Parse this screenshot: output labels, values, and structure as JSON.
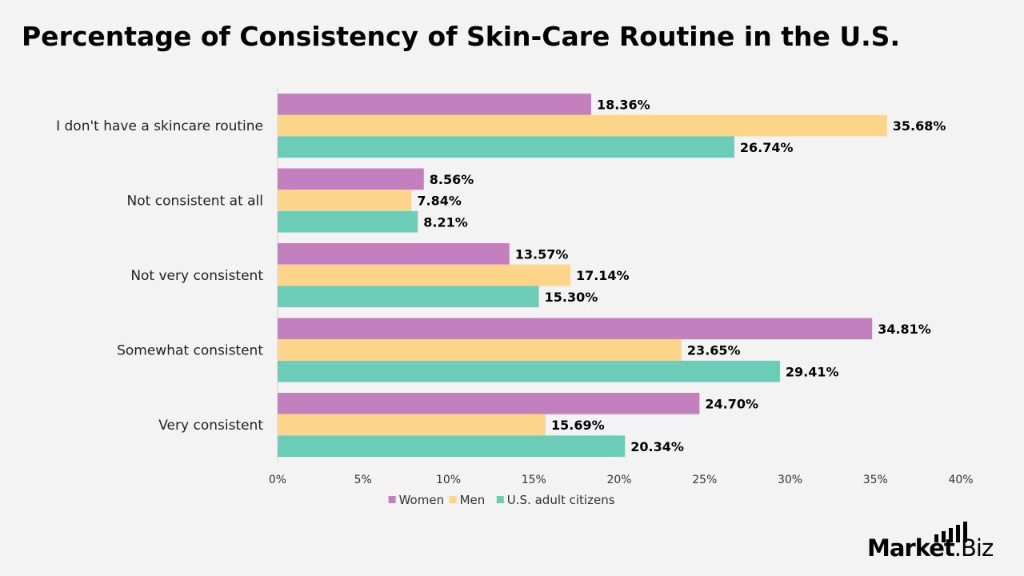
{
  "title": "Percentage of Consistency of Skin-Care Routine in the U.S.",
  "brand": {
    "strong": "Market",
    "light": ".Biz"
  },
  "chart_data": {
    "type": "bar",
    "orientation": "horizontal",
    "title": "Percentage of Consistency of Skin-Care Routine in the U.S.",
    "categories": [
      "I don't have a skincare routine",
      "Not consistent at all",
      "Not very consistent",
      "Somewhat consistent",
      "Very consistent"
    ],
    "series": [
      {
        "name": "Women",
        "color": "#c47fbf",
        "values": [
          18.36,
          8.56,
          13.57,
          34.81,
          24.7
        ],
        "labels": [
          "18.36%",
          "8.56%",
          "13.57%",
          "34.81%",
          "24.70%"
        ]
      },
      {
        "name": "Men",
        "color": "#fdd58a",
        "values": [
          35.68,
          7.84,
          17.14,
          23.65,
          15.69
        ],
        "labels": [
          "35.68%",
          "7.84%",
          "17.14%",
          "23.65%",
          "15.69%"
        ]
      },
      {
        "name": "U.S. adult citizens",
        "color": "#6bcdb8",
        "values": [
          26.74,
          8.21,
          15.3,
          29.41,
          20.34
        ],
        "labels": [
          "26.74%",
          "8.21%",
          "15.30%",
          "29.41%",
          "20.34%"
        ]
      }
    ],
    "xlim": [
      0,
      40
    ],
    "xticks": [
      0,
      5,
      10,
      15,
      20,
      25,
      30,
      35,
      40
    ],
    "xtick_labels": [
      "0%",
      "5%",
      "10%",
      "15%",
      "20%",
      "25%",
      "30%",
      "35%",
      "40%"
    ],
    "legend_position": "bottom",
    "grid": false
  }
}
